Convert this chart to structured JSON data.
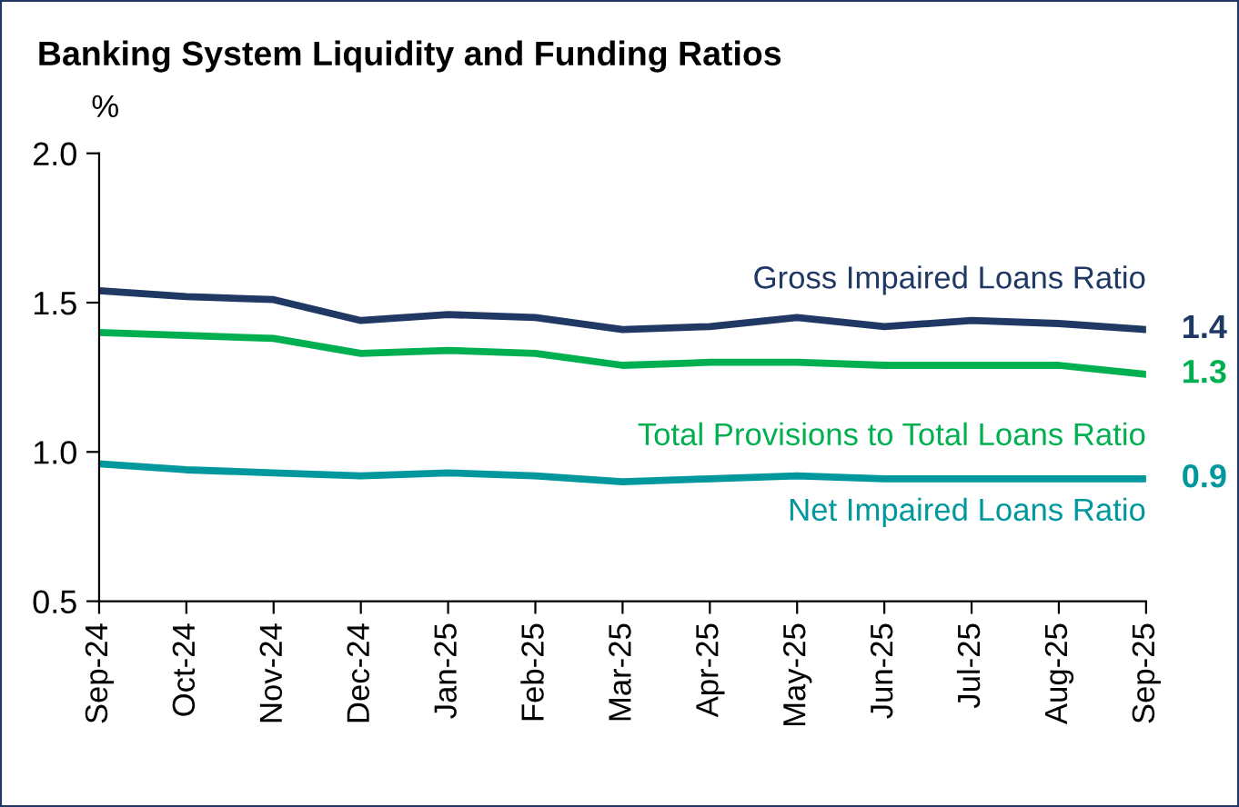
{
  "chart_data": {
    "type": "line",
    "title": "Banking System Liquidity and Funding Ratios",
    "ylabel": "%",
    "categories": [
      "Sep-24",
      "Oct-24",
      "Nov-24",
      "Dec-24",
      "Jan-25",
      "Feb-25",
      "Mar-25",
      "Apr-25",
      "May-25",
      "Jun-25",
      "Jul-25",
      "Aug-25",
      "Sep-25"
    ],
    "ylim": [
      0.5,
      2.0
    ],
    "yticks": [
      0.5,
      {
        "value": 1.0,
        "label": "1.0"
      },
      1.5,
      {
        "value": 2.0,
        "label": "2.0"
      }
    ],
    "grid": false,
    "legend": false,
    "marker": "none",
    "line_style": "solid",
    "series": [
      {
        "name": "Gross Impaired Loans Ratio",
        "color": "#1f3864",
        "values": [
          1.54,
          1.52,
          1.51,
          1.44,
          1.46,
          1.45,
          1.41,
          1.42,
          1.45,
          1.42,
          1.44,
          1.43,
          1.41
        ],
        "value_labels": [
          null,
          null,
          null,
          null,
          null,
          null,
          null,
          null,
          null,
          null,
          null,
          null,
          "1.4"
        ]
      },
      {
        "name": "Total Provisions to Total Loans Ratio",
        "color": "#00b050",
        "values": [
          1.4,
          1.39,
          1.38,
          1.33,
          1.34,
          1.33,
          1.29,
          1.3,
          1.3,
          1.29,
          1.29,
          1.29,
          1.26
        ],
        "value_labels": [
          null,
          null,
          null,
          null,
          null,
          null,
          null,
          null,
          null,
          null,
          null,
          null,
          "1.3"
        ]
      },
      {
        "name": "Net Impaired Loans Ratio",
        "color": "#00979d",
        "values": [
          0.96,
          0.94,
          0.93,
          0.92,
          0.93,
          0.92,
          0.9,
          0.91,
          0.92,
          0.91,
          0.91,
          0.91,
          0.91
        ],
        "value_labels": [
          null,
          null,
          null,
          null,
          null,
          null,
          null,
          null,
          null,
          null,
          null,
          null,
          "0.9"
        ]
      }
    ]
  }
}
